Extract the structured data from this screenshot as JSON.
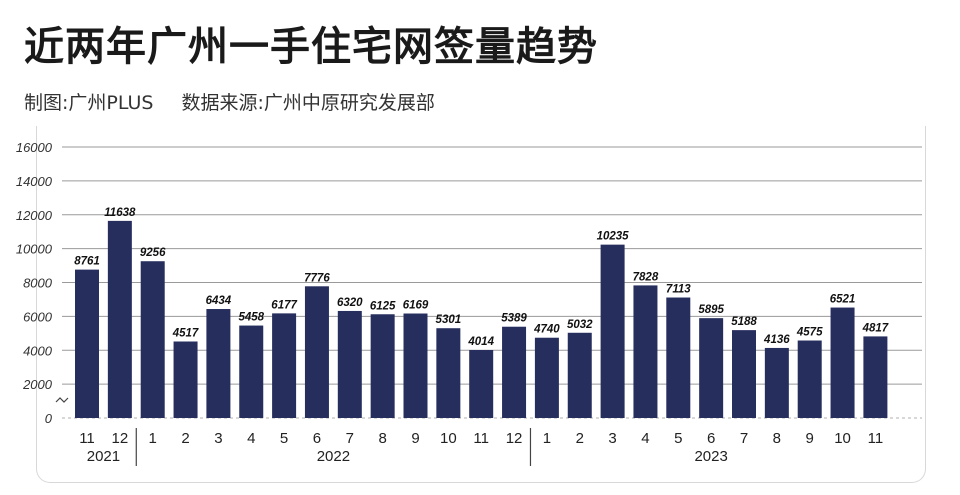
{
  "header": {
    "title": "近两年广州一手住宅网签量趋势",
    "credit": "制图:广州PLUS",
    "source": "数据来源:广州中原研究发展部"
  },
  "chart_data": {
    "type": "bar",
    "categories": [
      "11",
      "12",
      "1",
      "2",
      "3",
      "4",
      "5",
      "6",
      "7",
      "8",
      "9",
      "10",
      "11",
      "12",
      "1",
      "2",
      "3",
      "4",
      "5",
      "6",
      "7",
      "8",
      "9",
      "10",
      "11"
    ],
    "years": [
      {
        "label": "2021",
        "start": 0,
        "end": 1
      },
      {
        "label": "2022",
        "start": 2,
        "end": 13
      },
      {
        "label": "2023",
        "start": 14,
        "end": 24
      }
    ],
    "values": [
      8761,
      11638,
      9256,
      4517,
      6434,
      5458,
      6177,
      7776,
      6320,
      6125,
      6169,
      5301,
      4014,
      5389,
      4740,
      5032,
      10235,
      7828,
      7113,
      5895,
      5188,
      4136,
      4575,
      6521,
      4817
    ],
    "ylim": [
      0,
      16000
    ],
    "yticks": [
      0,
      2000,
      4000,
      6000,
      8000,
      10000,
      12000,
      14000,
      16000
    ],
    "grid": true,
    "bar_color": "#262e5e"
  }
}
